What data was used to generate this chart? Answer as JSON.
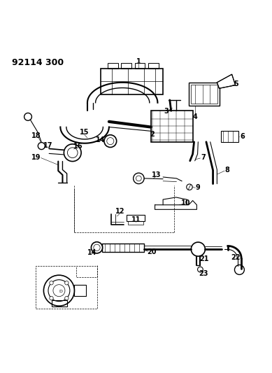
{
  "title": "92114 300",
  "bg_color": "#ffffff",
  "line_color": "#000000",
  "title_fontsize": 9,
  "label_fontsize": 7,
  "fig_width": 3.89,
  "fig_height": 5.33,
  "dpi": 100
}
